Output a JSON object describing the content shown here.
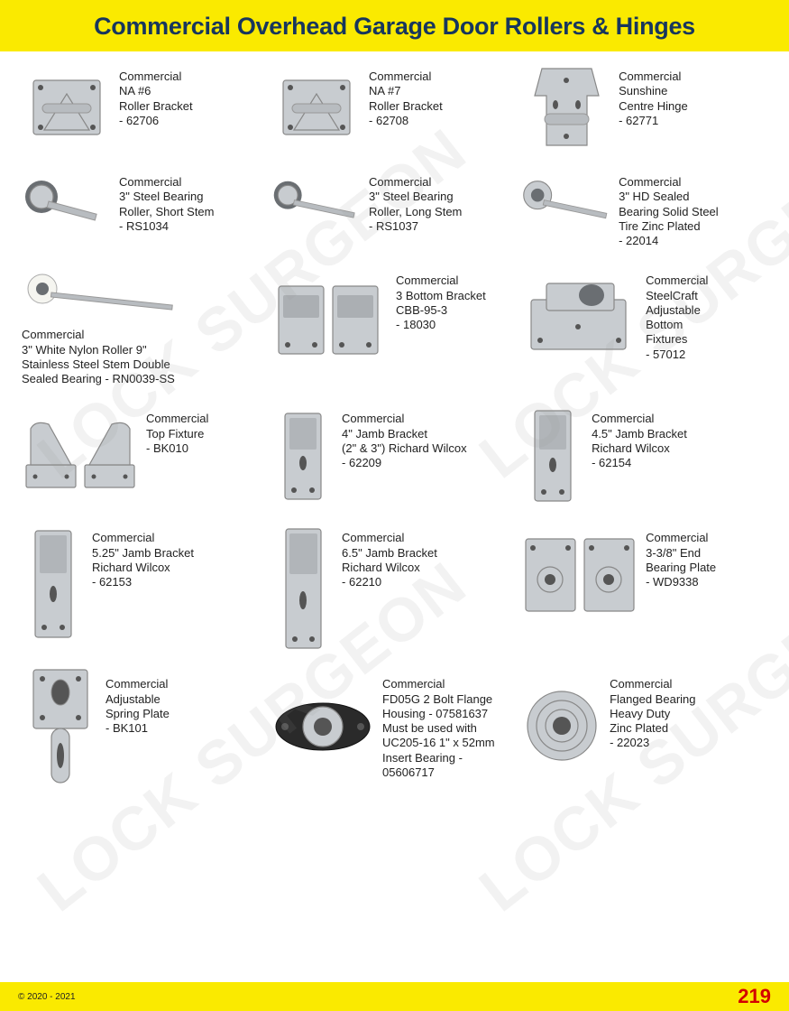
{
  "header": {
    "title": "Commercial Overhead Garage Door Rollers & Hinges"
  },
  "footer": {
    "copyright": "© 2020 - 2021",
    "page": "219"
  },
  "watermark": "LOCK SURGEON",
  "colors": {
    "yellow": "#faea00",
    "title_text": "#17365d",
    "page_red": "#d30000",
    "body_text": "#222222",
    "metal": "#c8ccd0"
  },
  "products": {
    "p1": "Commercial\nNA #6\nRoller Bracket\n- 62706",
    "p2": "Commercial\nNA #7\nRoller Bracket\n- 62708",
    "p3": "Commercial\nSunshine\nCentre Hinge\n- 62771",
    "p4": "Commercial\n3\" Steel Bearing\nRoller, Short Stem\n- RS1034",
    "p5": "Commercial\n3\" Steel Bearing\nRoller, Long Stem\n- RS1037",
    "p6": "Commercial\n3\" HD Sealed\nBearing Solid Steel\nTire Zinc Plated\n- 22014",
    "p7": "Commercial\n3\" White Nylon Roller 9\"\nStainless Steel Stem Double\nSealed Bearing - RN0039-SS",
    "p8": "Commercial\n3 Bottom Bracket\nCBB-95-3\n- 18030",
    "p9": "Commercial\nSteelCraft\nAdjustable\nBottom\nFixtures\n- 57012",
    "p10": "Commercial\nTop Fixture\n- BK010",
    "p11": "Commercial\n4\" Jamb Bracket\n(2\" & 3\") Richard Wilcox\n- 62209",
    "p12": "Commercial\n4.5\" Jamb Bracket\nRichard Wilcox\n- 62154",
    "p13": "Commercial\n5.25\" Jamb Bracket\nRichard Wilcox\n- 62153",
    "p14": "Commercial\n6.5\" Jamb Bracket\nRichard Wilcox\n- 62210",
    "p15": "Commercial\n3-3/8\" End\nBearing Plate\n- WD9338",
    "p16": "Commercial\nAdjustable\nSpring Plate\n- BK101",
    "p17": "Commercial\nFD05G 2 Bolt Flange\nHousing - 07581637\nMust be used with\nUC205-16 1\" x 52mm\nInsert Bearing - 05606717",
    "p18": "Commercial\nFlanged Bearing\nHeavy Duty\nZinc Plated\n- 22023"
  }
}
